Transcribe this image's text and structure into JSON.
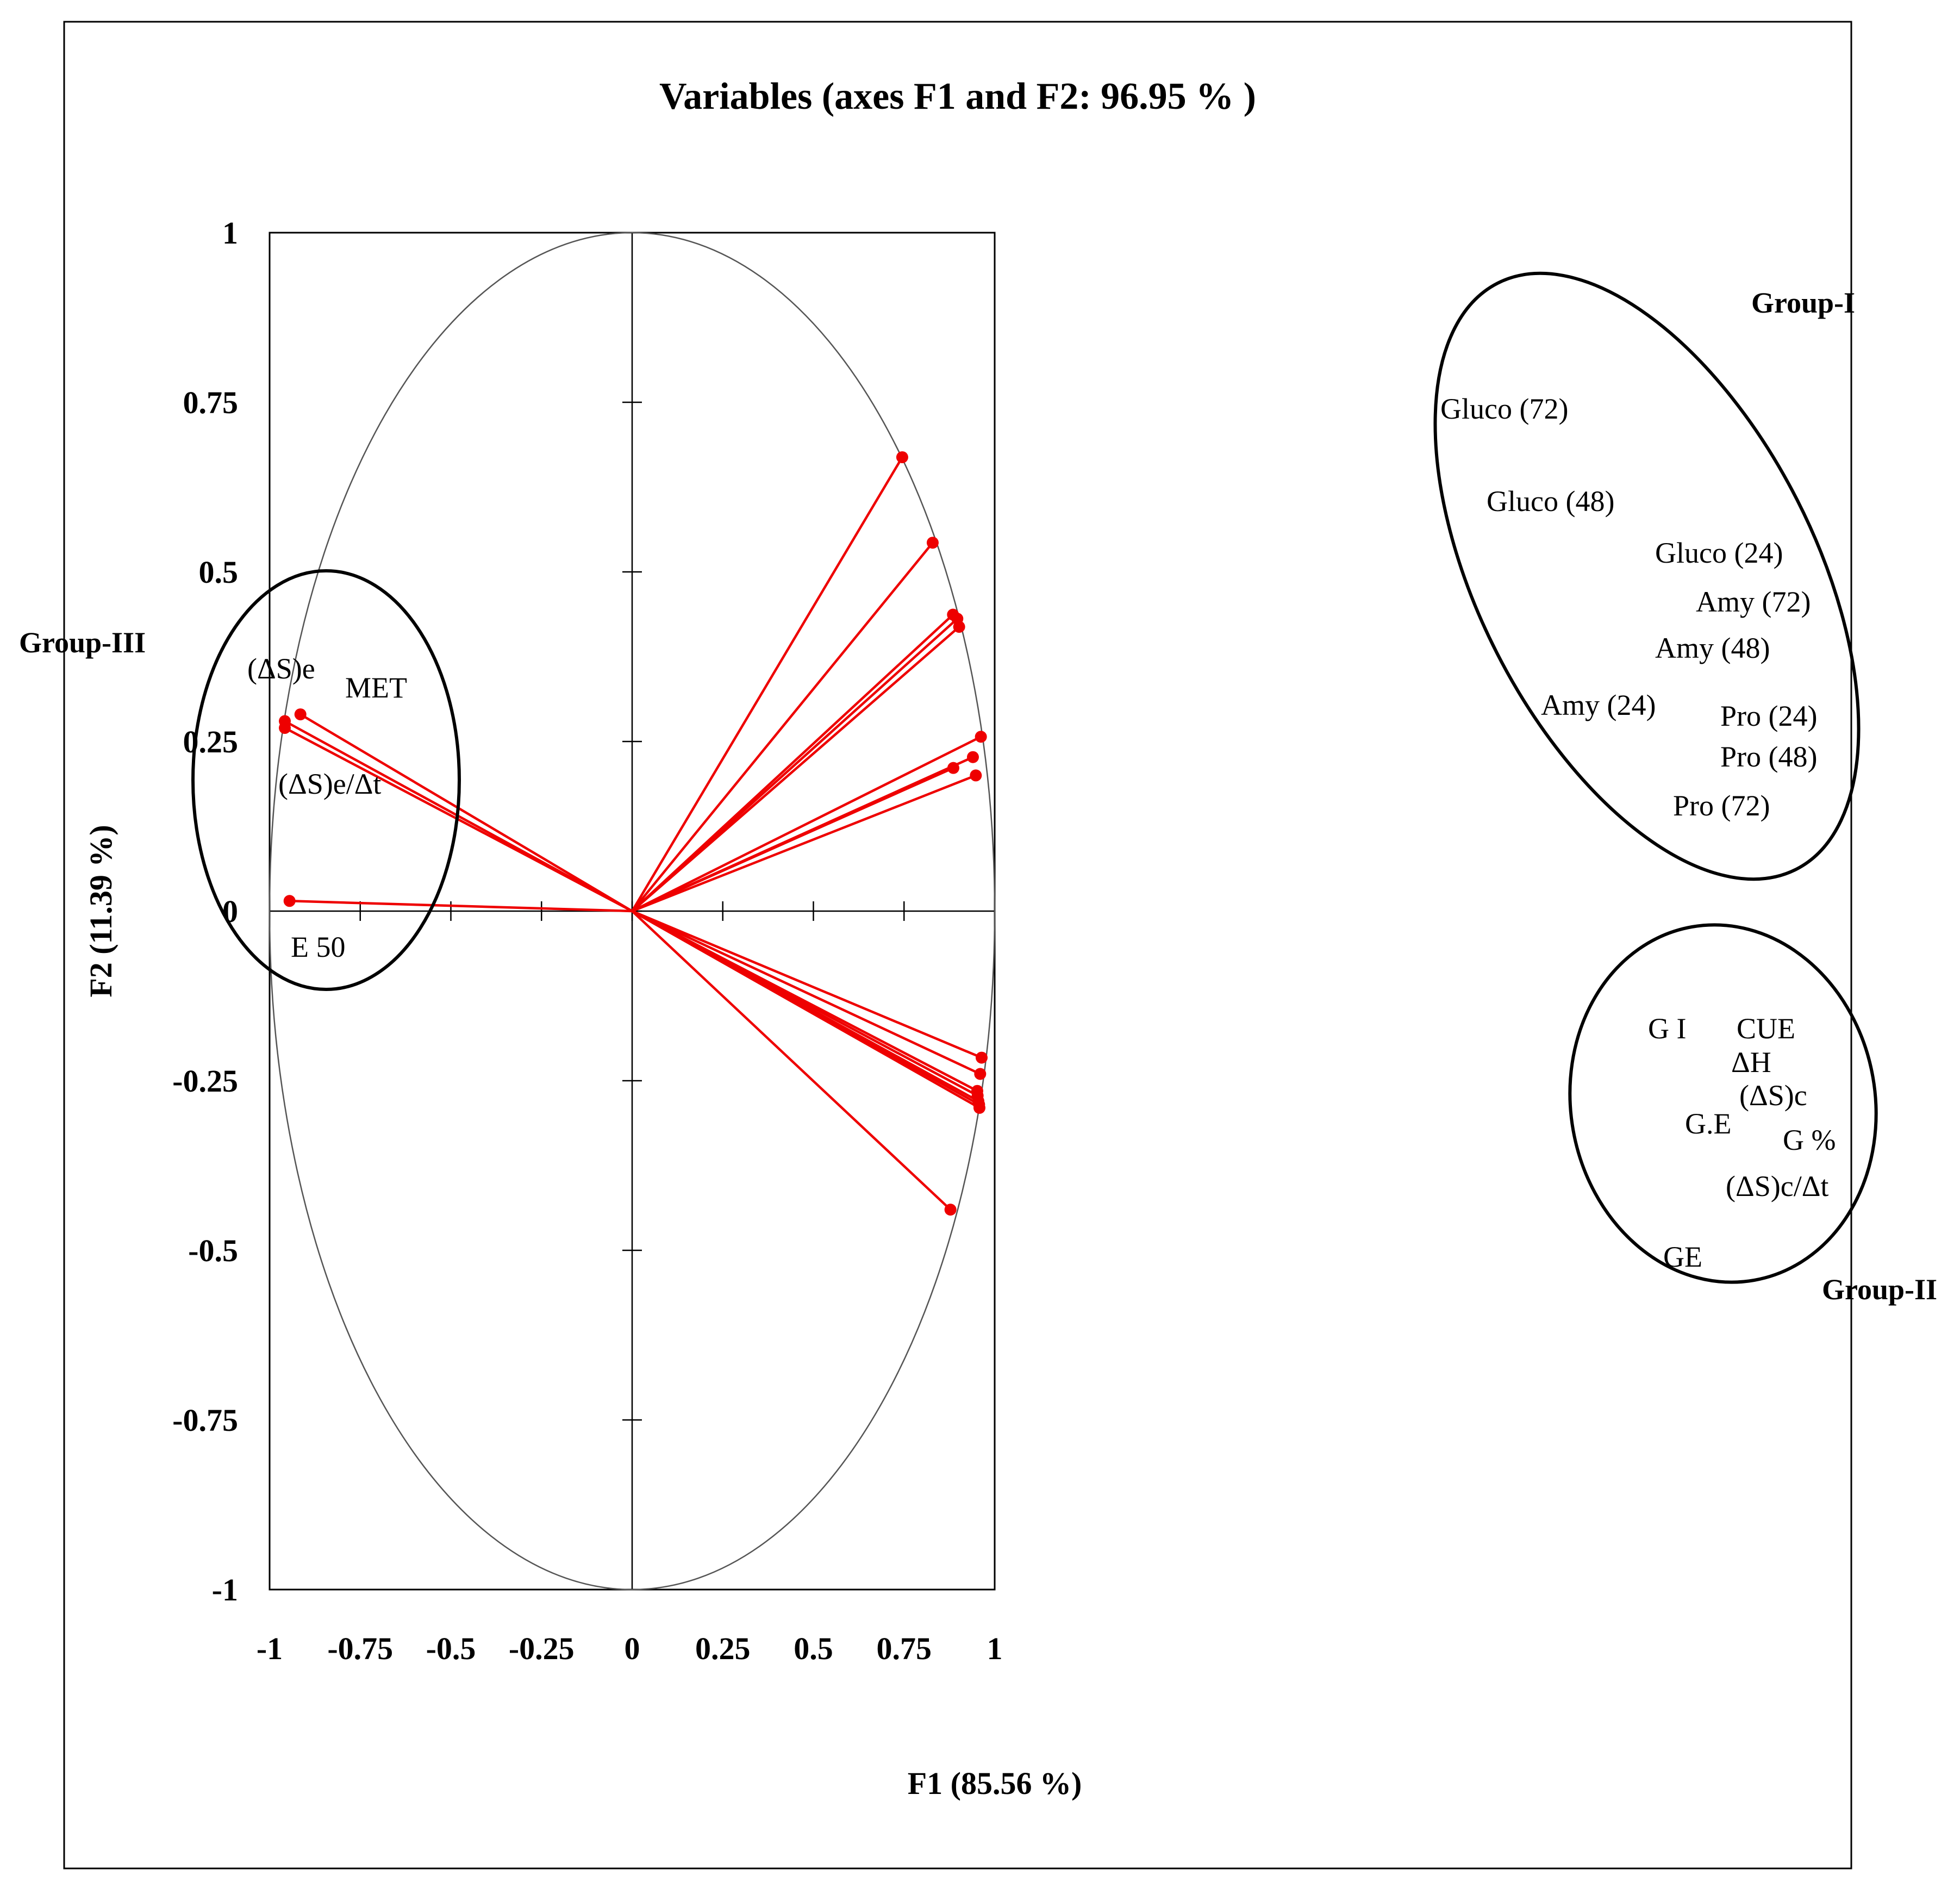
{
  "chart_data": {
    "type": "scatter",
    "subtype": "pca-correlation-circle",
    "title": "Variables (axes F1 and F2: 96.95 % )",
    "xlabel": "F1 (85.56 %)",
    "ylabel": "F2 (11.39 %)",
    "xlim": [
      -1,
      1
    ],
    "ylim": [
      -1,
      1
    ],
    "x_ticks": [
      "-1",
      "-0.75",
      "-0.5",
      "-0.25",
      "0",
      "0.25",
      "0.5",
      "0.75",
      "1"
    ],
    "y_ticks": [
      "1",
      "0.75",
      "0.5",
      "0.25",
      "0",
      "-0.25",
      "-0.5",
      "-0.75",
      "-1"
    ],
    "colors": {
      "vector": "#ee0000",
      "circle": "#555555",
      "group_ellipse": "#000000"
    },
    "variables": [
      {
        "name": "Gluco (72)",
        "x": 0.745,
        "y": 0.669
      },
      {
        "name": "Gluco (48)",
        "x": 0.829,
        "y": 0.543
      },
      {
        "name": "Gluco (24)",
        "x": 0.885,
        "y": 0.437
      },
      {
        "name": "Amy (72)",
        "x": 0.897,
        "y": 0.431
      },
      {
        "name": "Amy (48)",
        "x": 0.902,
        "y": 0.419
      },
      {
        "name": "Amy (24)",
        "x": 0.886,
        "y": 0.211
      },
      {
        "name": "Pro (24)",
        "x": 0.962,
        "y": 0.257
      },
      {
        "name": "Pro (48)",
        "x": 0.94,
        "y": 0.227
      },
      {
        "name": "Pro (72)",
        "x": 0.948,
        "y": 0.2
      },
      {
        "name": "G I",
        "x": 0.964,
        "y": -0.216
      },
      {
        "name": "CUE",
        "x": 0.96,
        "y": -0.24
      },
      {
        "name": "ΔH",
        "x": 0.952,
        "y": -0.265
      },
      {
        "name": "(ΔS)c",
        "x": 0.955,
        "y": -0.28
      },
      {
        "name": "G.E",
        "x": 0.958,
        "y": -0.29
      },
      {
        "name": "G %",
        "x": 0.953,
        "y": -0.272
      },
      {
        "name": "(ΔS)c/Δt",
        "x": 0.957,
        "y": -0.285
      },
      {
        "name": "GE",
        "x": 0.878,
        "y": -0.44
      },
      {
        "name": "(ΔS)e",
        "x": -0.958,
        "y": 0.28
      },
      {
        "name": "MET",
        "x": -0.915,
        "y": 0.29
      },
      {
        "name": "(ΔS)e/Δt",
        "x": -0.958,
        "y": 0.27
      },
      {
        "name": "E 50",
        "x": -0.945,
        "y": 0.015
      }
    ],
    "groups": [
      {
        "name": "Group-I"
      },
      {
        "name": "Group-II"
      },
      {
        "name": "Group-III"
      }
    ]
  }
}
